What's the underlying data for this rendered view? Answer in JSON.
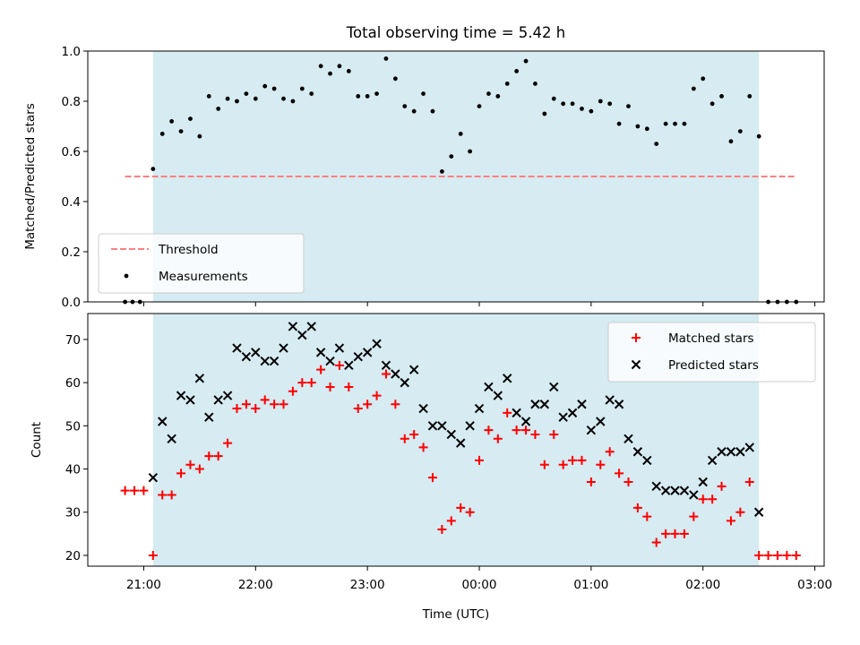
{
  "chart_data": [
    {
      "type": "scatter",
      "title": "Total observing time = 5.42 h",
      "ylabel": "Matched/Predicted stars",
      "xlabel": "",
      "xlim": [
        "20:30",
        "03:05"
      ],
      "ylim": [
        0,
        1.0
      ],
      "yticks": [
        0.0,
        0.2,
        0.4,
        0.6,
        0.8,
        1.0
      ],
      "ytick_labels": [
        "0.0",
        "0.2",
        "0.4",
        "0.6",
        "0.8",
        "1.0"
      ],
      "grid": false,
      "legend_position": "lower-left",
      "observing_window": {
        "start": "21:05",
        "end": "02:30",
        "color": "#add8e6"
      },
      "threshold": {
        "name": "Threshold",
        "value": 0.5,
        "x_start": "20:50",
        "x_end": "02:50",
        "color": "#ff7f7f",
        "style": "dashed"
      },
      "series": [
        {
          "name": "Measurements",
          "color": "#000000",
          "marker": "dot",
          "x": [
            "20:50",
            "20:54",
            "20:58",
            "21:05",
            "21:10",
            "21:15",
            "21:20",
            "21:25",
            "21:30",
            "21:35",
            "21:40",
            "21:45",
            "21:50",
            "21:55",
            "22:00",
            "22:05",
            "22:10",
            "22:15",
            "22:20",
            "22:25",
            "22:30",
            "22:35",
            "22:40",
            "22:45",
            "22:50",
            "22:55",
            "23:00",
            "23:05",
            "23:10",
            "23:15",
            "23:20",
            "23:25",
            "23:30",
            "23:35",
            "23:40",
            "23:45",
            "23:50",
            "23:55",
            "00:00",
            "00:05",
            "00:10",
            "00:15",
            "00:20",
            "00:25",
            "00:30",
            "00:35",
            "00:40",
            "00:45",
            "00:50",
            "00:55",
            "01:00",
            "01:05",
            "01:10",
            "01:15",
            "01:20",
            "01:25",
            "01:30",
            "01:35",
            "01:40",
            "01:45",
            "01:50",
            "01:55",
            "02:00",
            "02:05",
            "02:10",
            "02:15",
            "02:20",
            "02:25",
            "02:30",
            "02:35",
            "02:40",
            "02:45",
            "02:50"
          ],
          "y": [
            0.0,
            0.0,
            0.0,
            0.53,
            0.67,
            0.72,
            0.68,
            0.73,
            0.66,
            0.82,
            0.77,
            0.81,
            0.8,
            0.83,
            0.81,
            0.86,
            0.85,
            0.81,
            0.8,
            0.85,
            0.83,
            0.94,
            0.91,
            0.94,
            0.92,
            0.82,
            0.82,
            0.83,
            0.97,
            0.89,
            0.78,
            0.76,
            0.83,
            0.76,
            0.52,
            0.58,
            0.67,
            0.6,
            0.78,
            0.83,
            0.82,
            0.87,
            0.92,
            0.96,
            0.87,
            0.75,
            0.81,
            0.79,
            0.79,
            0.77,
            0.76,
            0.8,
            0.79,
            0.71,
            0.78,
            0.7,
            0.69,
            0.63,
            0.71,
            0.71,
            0.71,
            0.85,
            0.89,
            0.79,
            0.82,
            0.64,
            0.68,
            0.82,
            0.66,
            0.0,
            0.0,
            0.0,
            0.0
          ]
        }
      ]
    },
    {
      "type": "scatter",
      "title": "",
      "xlabel": "Time (UTC)",
      "ylabel": "Count",
      "xlim": [
        "20:30",
        "03:05"
      ],
      "ylim": [
        17.5,
        76
      ],
      "xticks": [
        "21:00",
        "22:00",
        "23:00",
        "00:00",
        "01:00",
        "02:00",
        "03:00"
      ],
      "yticks": [
        20,
        30,
        40,
        50,
        60,
        70
      ],
      "ytick_labels": [
        "20",
        "30",
        "40",
        "50",
        "60",
        "70"
      ],
      "grid": false,
      "legend_position": "upper-right",
      "observing_window": {
        "start": "21:05",
        "end": "02:30",
        "color": "#add8e6"
      },
      "series": [
        {
          "name": "Matched stars",
          "color": "#ff0000",
          "marker": "plus",
          "x": [
            "20:50",
            "20:55",
            "21:00",
            "21:05",
            "21:10",
            "21:15",
            "21:20",
            "21:25",
            "21:30",
            "21:35",
            "21:40",
            "21:45",
            "21:50",
            "21:55",
            "22:00",
            "22:05",
            "22:10",
            "22:15",
            "22:20",
            "22:25",
            "22:30",
            "22:35",
            "22:40",
            "22:45",
            "22:50",
            "22:55",
            "23:00",
            "23:05",
            "23:10",
            "23:15",
            "23:20",
            "23:25",
            "23:30",
            "23:35",
            "23:40",
            "23:45",
            "23:50",
            "23:55",
            "00:00",
            "00:05",
            "00:10",
            "00:15",
            "00:20",
            "00:25",
            "00:30",
            "00:35",
            "00:40",
            "00:45",
            "00:50",
            "00:55",
            "01:00",
            "01:05",
            "01:10",
            "01:15",
            "01:20",
            "01:25",
            "01:30",
            "01:35",
            "01:40",
            "01:45",
            "01:50",
            "01:55",
            "02:00",
            "02:05",
            "02:10",
            "02:15",
            "02:20",
            "02:25",
            "02:30",
            "02:35",
            "02:40",
            "02:45",
            "02:50"
          ],
          "y": [
            35,
            35,
            35,
            20,
            34,
            34,
            39,
            41,
            40,
            43,
            43,
            46,
            54,
            55,
            54,
            56,
            55,
            55,
            58,
            60,
            60,
            63,
            59,
            64,
            59,
            54,
            55,
            57,
            62,
            55,
            47,
            48,
            45,
            38,
            26,
            28,
            31,
            30,
            42,
            49,
            47,
            53,
            49,
            49,
            48,
            41,
            48,
            41,
            42,
            42,
            37,
            41,
            44,
            39,
            37,
            31,
            29,
            23,
            25,
            25,
            25,
            29,
            33,
            33,
            36,
            28,
            30,
            37,
            20,
            20,
            20,
            20,
            20
          ]
        },
        {
          "name": "Predicted stars",
          "color": "#000000",
          "marker": "x",
          "x": [
            "21:05",
            "21:10",
            "21:15",
            "21:20",
            "21:25",
            "21:30",
            "21:35",
            "21:40",
            "21:45",
            "21:50",
            "21:55",
            "22:00",
            "22:05",
            "22:10",
            "22:15",
            "22:20",
            "22:25",
            "22:30",
            "22:35",
            "22:40",
            "22:45",
            "22:50",
            "22:55",
            "23:00",
            "23:05",
            "23:10",
            "23:15",
            "23:20",
            "23:25",
            "23:30",
            "23:35",
            "23:40",
            "23:45",
            "23:50",
            "23:55",
            "00:00",
            "00:05",
            "00:10",
            "00:15",
            "00:20",
            "00:25",
            "00:30",
            "00:35",
            "00:40",
            "00:45",
            "00:50",
            "00:55",
            "01:00",
            "01:05",
            "01:10",
            "01:15",
            "01:20",
            "01:25",
            "01:30",
            "01:35",
            "01:40",
            "01:45",
            "01:50",
            "01:55",
            "02:00",
            "02:05",
            "02:10",
            "02:15",
            "02:20",
            "02:25",
            "02:30"
          ],
          "y": [
            38,
            51,
            47,
            57,
            56,
            61,
            52,
            56,
            57,
            68,
            66,
            67,
            65,
            65,
            68,
            73,
            71,
            73,
            67,
            65,
            68,
            64,
            66,
            67,
            69,
            64,
            62,
            60,
            63,
            54,
            50,
            50,
            48,
            46,
            50,
            54,
            59,
            57,
            61,
            53,
            51,
            55,
            55,
            59,
            52,
            53,
            55,
            49,
            51,
            56,
            55,
            47,
            44,
            42,
            36,
            35,
            35,
            35,
            34,
            37,
            42,
            44,
            44,
            44,
            45,
            30
          ]
        }
      ]
    }
  ]
}
